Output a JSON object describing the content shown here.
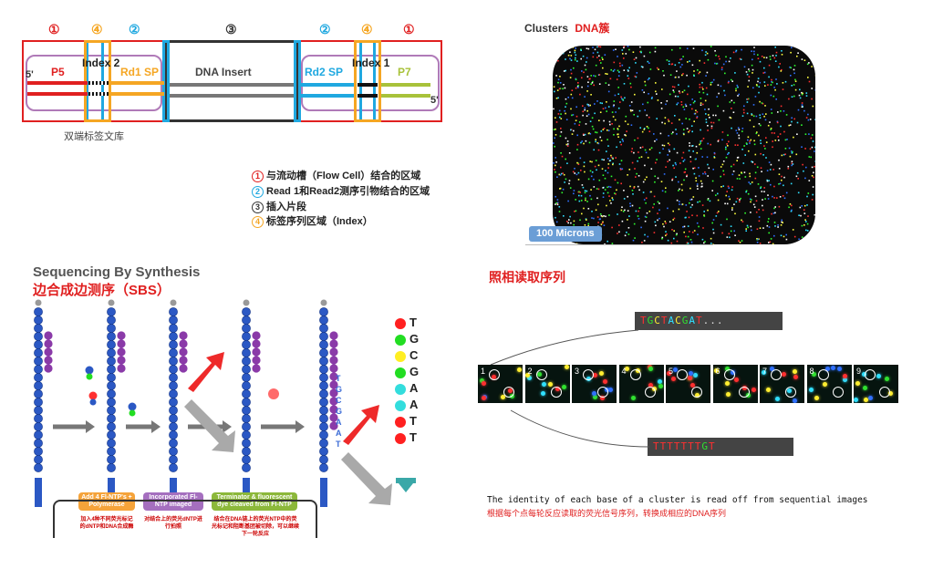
{
  "library": {
    "circles": [
      "①",
      "④",
      "②",
      "③",
      "②",
      "④",
      "①"
    ],
    "segments": {
      "p5": "P5",
      "index2": "Index 2",
      "rd1sp": "Rd1 SP",
      "insert": "DNA Insert",
      "rd2sp": "Rd2 SP",
      "index1": "Index 1",
      "p7": "P7"
    },
    "five_prime_left": "5'",
    "five_prime_right": "5'",
    "caption": "双端标签文库",
    "legend": [
      {
        "num": "1",
        "text": "与流动槽（Flow Cell）结合的区域",
        "color": "#e02020"
      },
      {
        "num": "2",
        "text": "Read 1和Read2测序引物结合的区域",
        "color": "#1fa8e0"
      },
      {
        "num": "3",
        "text": "插入片段",
        "color": "#333333"
      },
      {
        "num": "4",
        "text": "标签序列区域（Index）",
        "color": "#f5a623"
      }
    ],
    "colors": {
      "red": "#e02020",
      "blue": "#1fa8e0",
      "dark": "#333333",
      "orange": "#f5a623",
      "purple": "#b07ab8"
    }
  },
  "clusters": {
    "title": "Clusters",
    "title_cn": "DNA簇",
    "scale": "100 Microns"
  },
  "sbs": {
    "title": "Sequencing By Synthesis",
    "subtitle": "边合成边测序（SBS）",
    "bases": [
      {
        "base": "T",
        "color": "#ff2020"
      },
      {
        "base": "G",
        "color": "#22dd22"
      },
      {
        "base": "C",
        "color": "#ffee22"
      },
      {
        "base": "G",
        "color": "#22dd22"
      },
      {
        "base": "A",
        "color": "#33dddd"
      },
      {
        "base": "A",
        "color": "#33dddd"
      },
      {
        "base": "T",
        "color": "#ff2020"
      },
      {
        "base": "T",
        "color": "#ff2020"
      }
    ],
    "strand_letters": [
      "T",
      "G",
      "C",
      "G",
      "A",
      "A",
      "T"
    ],
    "steps": [
      {
        "label": "Add 4 Fl-NTP's + Polymerase",
        "desc": "加入4种不同荧光标记的dNTP和DNA合成酶",
        "color": "#f5a33a"
      },
      {
        "label": "Incorporated Fl-NTP imaged",
        "desc": "对结合上的荧光dNTP进行拍照",
        "color": "#a56fbf"
      },
      {
        "label": "Terminator & fluorescent dye cleaved from Fl-NTP",
        "desc": "结合在DNA链上的荧光NTP中的荧光标记和阻断基团被切除，可以继续下一轮反应",
        "color": "#8cb83a"
      }
    ]
  },
  "imaging": {
    "title": "照相读取序列",
    "top_seq": "TGCTACGAT...",
    "bottom_seq": "TTTTTTTGT",
    "frames": [
      "1",
      "2",
      "3",
      "4",
      "5",
      "6",
      "7",
      "8",
      "9"
    ],
    "caption_en": "The identity of each base of a cluster is read off from sequential images",
    "caption_cn": "根据每个点每轮反应读取的荧光信号序列，转换成相应的DNA序列"
  }
}
